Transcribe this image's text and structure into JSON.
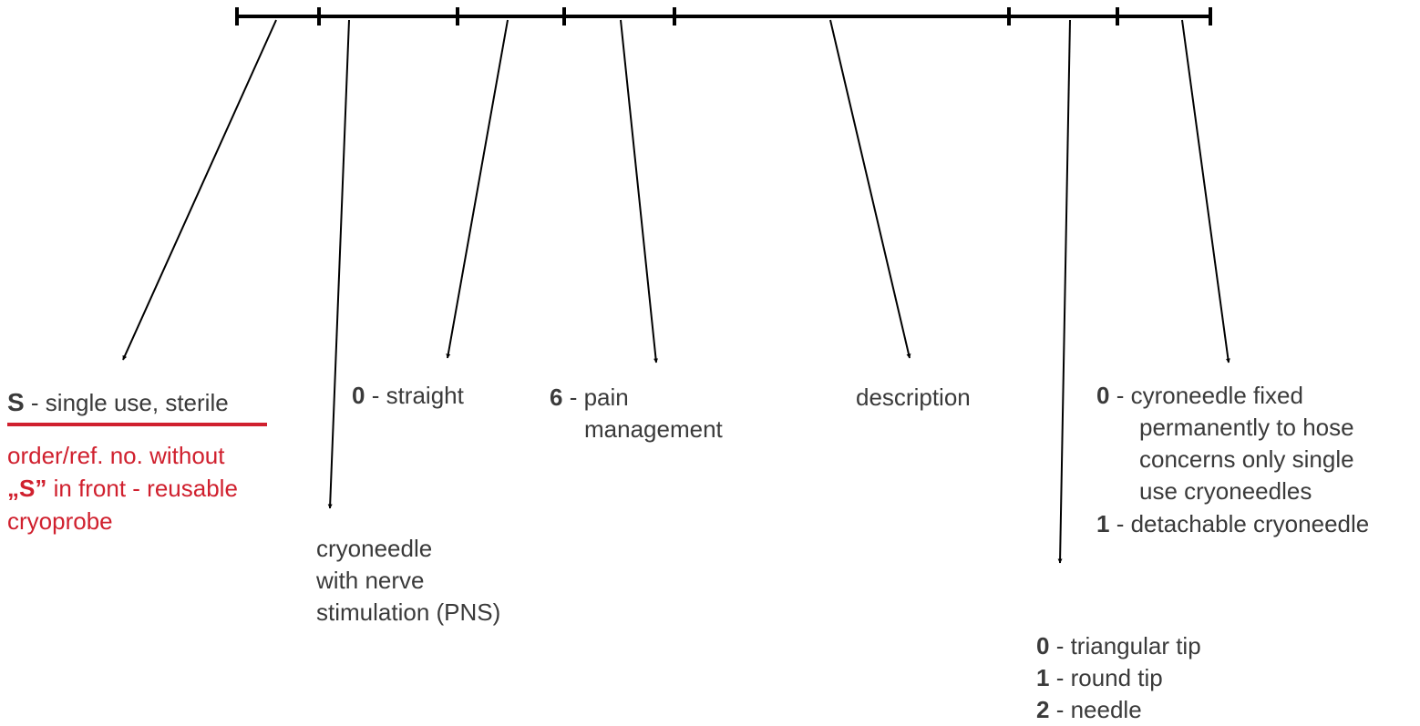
{
  "labels": [
    {
      "code": "S",
      "text": "- single use, sterile",
      "note": {
        "line1": "order/ref. no. without",
        "code": "„S”",
        "line2": "in front - reusable",
        "line3": "cryoprobe"
      }
    },
    {
      "lines": [
        "cryoneedle",
        "with nerve",
        "stimulation (PNS)"
      ]
    },
    {
      "code": "0",
      "text": "- straight"
    },
    {
      "code": "6",
      "text": "- pain",
      "line2": "management"
    },
    {
      "text": "description"
    },
    {
      "items": [
        {
          "code": "0",
          "text": "- triangular tip"
        },
        {
          "code": "1",
          "text": "- round tip"
        },
        {
          "code": "2",
          "text": "- needle"
        }
      ]
    },
    {
      "items": [
        {
          "code": "0",
          "text": "- cyroneedle fixed",
          "more": [
            "permanently to hose",
            "concerns only single",
            "use cryoneedles"
          ]
        },
        {
          "code": "1",
          "text": "- detachable cryoneedle"
        }
      ]
    }
  ]
}
